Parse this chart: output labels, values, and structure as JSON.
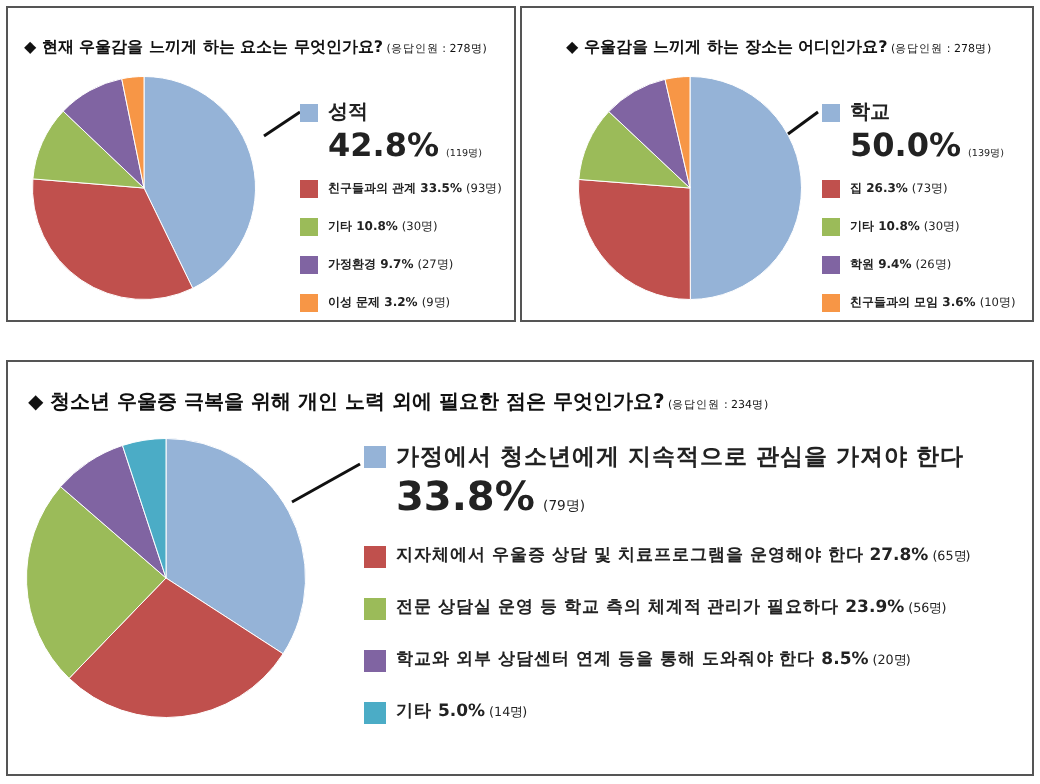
{
  "chart_data": [
    {
      "type": "pie",
      "title": "◆ 현재 우울감을 느끼게 하는 요소는 무엇인가요?",
      "subtitle": "(응답인원 : 278명)",
      "categories": [
        "성적",
        "친구들과의 관계",
        "기타",
        "가정환경",
        "이성 문제"
      ],
      "values": [
        42.8,
        33.5,
        10.8,
        9.7,
        3.2
      ],
      "colors": [
        "#95b3d7",
        "#c0504d",
        "#9bbb59",
        "#8064a2",
        "#f79646"
      ],
      "value_labels": [
        "42.8% (119명)",
        "33.5% (93명)",
        "10.8% (30명)",
        "9.7% (27명)",
        "3.2% (9명)"
      ],
      "legend": "right"
    },
    {
      "type": "pie",
      "title": "◆ 우울감을 느끼게 하는 장소는 어디인가요?",
      "subtitle": "(응답인원 : 278명)",
      "categories": [
        "학교",
        "집",
        "기타",
        "학원",
        "친구들과의 모임"
      ],
      "values": [
        50.0,
        26.3,
        10.8,
        9.4,
        3.6
      ],
      "colors": [
        "#95b3d7",
        "#c0504d",
        "#9bbb59",
        "#8064a2",
        "#f79646"
      ],
      "value_labels": [
        "50.0% (139명)",
        "26.3% (73명)",
        "10.8% (30명)",
        "9.4% (26명)",
        "3.6% (10명)"
      ],
      "legend": "right"
    },
    {
      "type": "pie",
      "title": "◆ 청소년 우울증 극복을 위해 개인 노력 외에 필요한 점은 무엇인가요?",
      "subtitle": "(응답인원 : 234명)",
      "categories": [
        "가정에서 청소년에게 지속적으로 관심을 가져야 한다",
        "지자체에서 우울증 상담 및 치료프로그램을 운영해야 한다",
        "전문 상담실 운영 등 학교 측의 체계적 관리가 필요하다",
        "학교와 외부 상담센터 연계 등을 통해 도와줘야 한다",
        "기타"
      ],
      "values": [
        33.8,
        27.8,
        23.9,
        8.5,
        5.0
      ],
      "colors": [
        "#95b3d7",
        "#c0504d",
        "#9bbb59",
        "#8064a2",
        "#4bacc6"
      ],
      "value_labels": [
        "33.8% (79명)",
        "27.8% (65명)",
        "23.9% (56명)",
        "8.5% (20명)",
        "5.0% (14명)"
      ],
      "legend": "right"
    }
  ]
}
